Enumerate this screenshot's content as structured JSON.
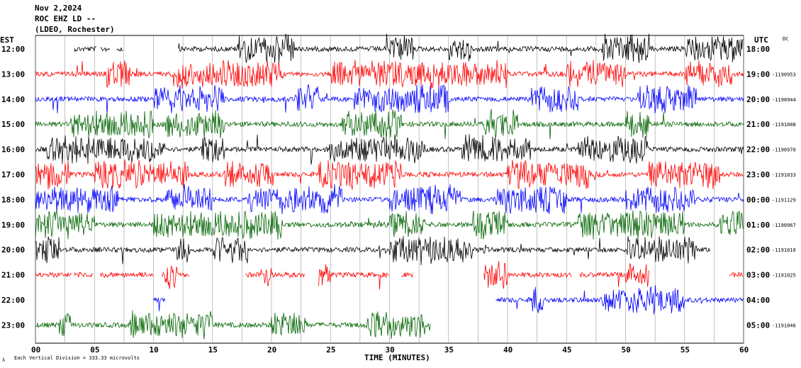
{
  "header": {
    "date": "Nov 2,2024",
    "station": "ROC EHZ LD --",
    "network": "(LDEO, Rochester)"
  },
  "chart_data": {
    "type": "line",
    "title": "Nov 2,2024",
    "xlabel": "TIME (MINUTES)",
    "left_axis_label": "EST",
    "right_axis_label": "UTC",
    "dc_label": "DC",
    "scale_note": "Each Vertical Division = 333.33 microvolts",
    "xlim": [
      0,
      60
    ],
    "x_ticks": [
      "00",
      "05",
      "10",
      "15",
      "20",
      "25",
      "30",
      "35",
      "40",
      "45",
      "50",
      "55",
      "60"
    ],
    "grid": true,
    "colors": [
      "#000000",
      "#ff0000",
      "#0000ff",
      "#006400"
    ],
    "rows": [
      {
        "est": "12:00",
        "utc": "18:00",
        "dc": ""
      },
      {
        "est": "13:00",
        "utc": "19:00",
        "dc": "-1190953"
      },
      {
        "est": "14:00",
        "utc": "20:00",
        "dc": "-1190944"
      },
      {
        "est": "15:00",
        "utc": "21:00",
        "dc": "-1191008"
      },
      {
        "est": "16:00",
        "utc": "22:00",
        "dc": "-1190970"
      },
      {
        "est": "17:00",
        "utc": "23:00",
        "dc": "-1191033"
      },
      {
        "est": "18:00",
        "utc": "00:00",
        "dc": "-1191129"
      },
      {
        "est": "19:00",
        "utc": "01:00",
        "dc": "-1190967"
      },
      {
        "est": "20:00",
        "utc": "02:00",
        "dc": "-1191010"
      },
      {
        "est": "21:00",
        "utc": "03:00",
        "dc": "-1191025"
      },
      {
        "est": "22:00",
        "utc": "04:00",
        "dc": ""
      },
      {
        "est": "23:00",
        "utc": "05:00",
        "dc": "-1191046"
      }
    ]
  }
}
